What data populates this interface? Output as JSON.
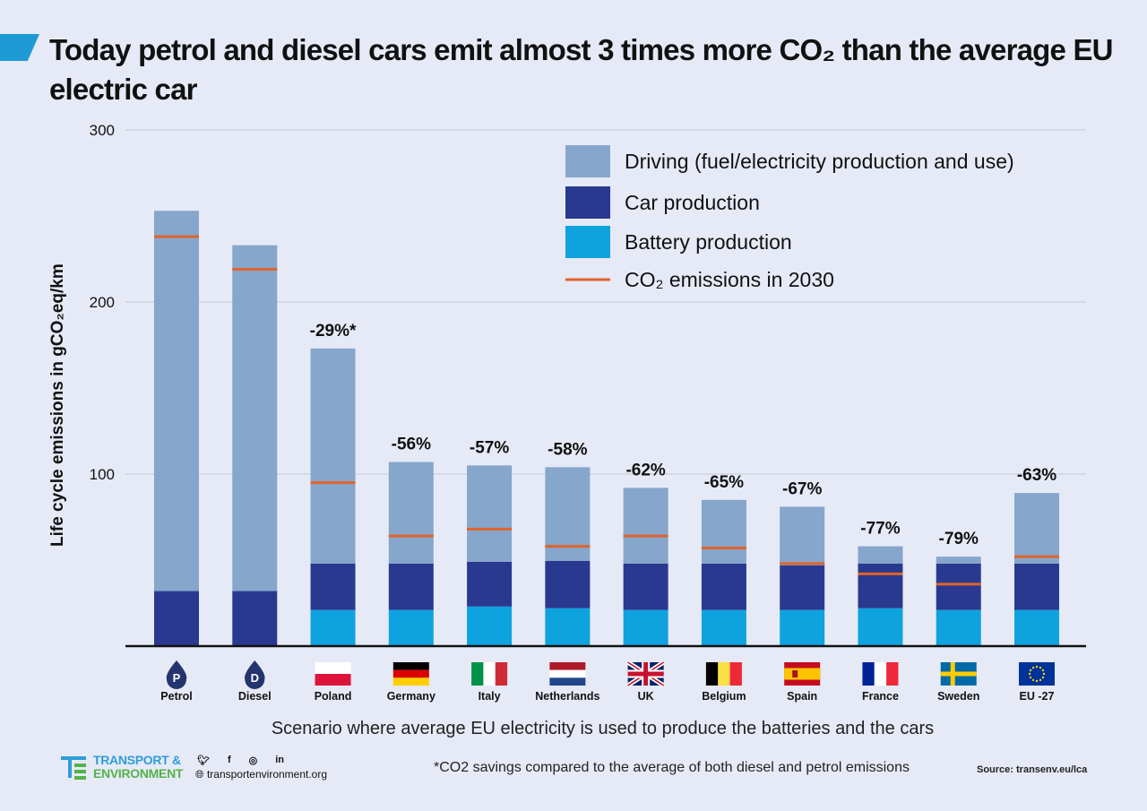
{
  "title": "Today petrol and diesel cars emit almost 3 times more CO₂ than the average EU electric car",
  "chart_data": {
    "type": "bar",
    "stacked": true,
    "ylabel": "Life  cycle emissions in gCO₂eq/km",
    "ylim": [
      0,
      300
    ],
    "yticks": [
      "100",
      "200",
      "300"
    ],
    "grid": true,
    "legend_position": "top-right",
    "categories": [
      "Petrol",
      "Diesel",
      "Poland",
      "Germany",
      "Italy",
      "Netherlands",
      "UK",
      "Belgium",
      "Spain",
      "France",
      "Sweden",
      "EU -27"
    ],
    "category_icons": [
      "petrol-drop-icon",
      "diesel-drop-icon",
      "flag-poland-icon",
      "flag-germany-icon",
      "flag-italy-icon",
      "flag-netherlands-icon",
      "flag-uk-icon",
      "flag-belgium-icon",
      "flag-spain-icon",
      "flag-france-icon",
      "flag-sweden-icon",
      "flag-eu-icon"
    ],
    "series": [
      {
        "name": "Battery production",
        "color": "#0ea3de",
        "values": [
          0,
          0,
          21,
          21,
          23,
          22,
          21,
          21,
          21,
          22,
          21,
          21
        ]
      },
      {
        "name": "Car production",
        "color": "#2a3990",
        "values": [
          32,
          32,
          27,
          27,
          26,
          27.5,
          27,
          27,
          26,
          26,
          27,
          27
        ]
      },
      {
        "name": "Driving (fuel/electricity production and use)",
        "color": "#86a6cc",
        "values": [
          221,
          201,
          125,
          59,
          56,
          54.5,
          44,
          37,
          34,
          10,
          4,
          41
        ]
      }
    ],
    "co2_2030": {
      "name": "CO₂ emissions in 2030",
      "color": "#e0632a",
      "values": [
        238,
        219,
        95,
        64,
        68,
        58,
        64,
        57,
        48,
        42,
        36,
        52
      ]
    },
    "legend": [
      "Driving (fuel/electricity production and use)",
      "Car production",
      "Battery production",
      "CO₂ emissions in 2030"
    ],
    "annotations": [
      "",
      "",
      "-29%*",
      "-56%",
      "-57%",
      "-58%",
      "-62%",
      "-65%",
      "-67%",
      "-77%",
      "-79%",
      "-63%"
    ]
  },
  "scenario": "Scenario where  average EU electricity is used to produce the batteries and the cars",
  "footer": {
    "brand_line1": "TRANSPORT &",
    "brand_line2": "ENVIRONMENT",
    "website": "transportenvironment.org",
    "social_icons": [
      "twitter-icon",
      "facebook-icon",
      "instagram-icon",
      "linkedin-icon"
    ],
    "note": "*CO2 savings compared to the average of both diesel and petrol emissions",
    "source": "Source: transenv.eu/lca"
  }
}
